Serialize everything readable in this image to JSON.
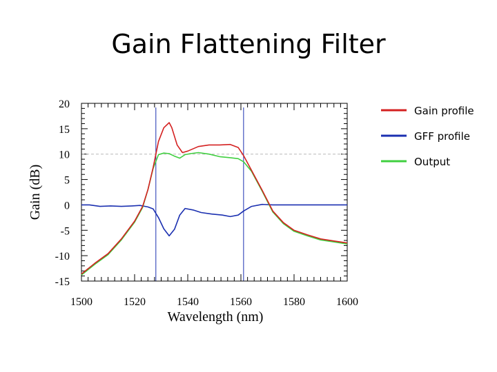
{
  "slide": {
    "title": "Gain Flattening Filter"
  },
  "chart_data": {
    "type": "line",
    "title": "Gain Flattening Filter",
    "xlabel": "Wavelength (nm)",
    "ylabel": "Gain (dB)",
    "xlim": [
      1500,
      1600
    ],
    "ylim": [
      -15,
      20
    ],
    "xticks": [
      1500,
      1520,
      1540,
      1560,
      1580,
      1600
    ],
    "yticks": [
      20,
      15,
      10,
      5,
      0,
      -5,
      -10,
      -15
    ],
    "reference_line": {
      "y": 10,
      "style": "dashed"
    },
    "markers": [
      1528,
      1561
    ],
    "legend_position": "right",
    "series": [
      {
        "name": "Gain profile",
        "color": "#d42020",
        "x": [
          1500,
          1505,
          1510,
          1515,
          1520,
          1523,
          1525,
          1527,
          1529,
          1531,
          1533,
          1534,
          1536,
          1538,
          1540,
          1544,
          1548,
          1552,
          1556,
          1559,
          1561,
          1564,
          1568,
          1572,
          1576,
          1580,
          1585,
          1590,
          1595,
          1600
        ],
        "y": [
          -13.6,
          -11.5,
          -9.6,
          -6.7,
          -3.2,
          -0.3,
          3.0,
          7.4,
          12.5,
          15.2,
          16.2,
          15.2,
          11.8,
          10.3,
          10.6,
          11.5,
          11.8,
          11.8,
          11.9,
          11.3,
          9.7,
          6.8,
          2.9,
          -1.2,
          -3.5,
          -5.0,
          -5.9,
          -6.7,
          -7.1,
          -7.5
        ]
      },
      {
        "name": "GFF profile",
        "color": "#1a2fb0",
        "x": [
          1500,
          1503,
          1507,
          1511,
          1515,
          1519,
          1522,
          1525,
          1527,
          1529,
          1531,
          1533,
          1535,
          1537,
          1539,
          1542,
          1545,
          1549,
          1553,
          1556,
          1559,
          1561,
          1564,
          1568,
          1572,
          1576,
          1580,
          1590,
          1600
        ],
        "y": [
          0,
          0,
          -0.3,
          -0.2,
          -0.3,
          -0.2,
          -0.1,
          -0.4,
          -0.8,
          -2.5,
          -4.7,
          -6.1,
          -4.8,
          -2.0,
          -0.7,
          -1.0,
          -1.5,
          -1.8,
          -2.0,
          -2.3,
          -2.0,
          -1.2,
          -0.3,
          0.1,
          0,
          0,
          0,
          0,
          0
        ]
      },
      {
        "name": "Output",
        "color": "#3fcf3f",
        "x": [
          1500,
          1505,
          1510,
          1515,
          1520,
          1523,
          1525,
          1527,
          1529,
          1531,
          1533,
          1535,
          1537,
          1539,
          1541,
          1544,
          1548,
          1552,
          1556,
          1559,
          1561,
          1564,
          1568,
          1572,
          1576,
          1580,
          1585,
          1590,
          1595,
          1600
        ],
        "y": [
          -13.8,
          -11.7,
          -9.8,
          -6.9,
          -3.4,
          -0.5,
          3.0,
          7.2,
          9.9,
          10.2,
          10.1,
          9.6,
          9.2,
          9.9,
          10.1,
          10.3,
          10.0,
          9.5,
          9.3,
          9.1,
          8.5,
          6.6,
          2.7,
          -1.4,
          -3.7,
          -5.2,
          -6.1,
          -6.9,
          -7.3,
          -7.7
        ]
      }
    ]
  }
}
